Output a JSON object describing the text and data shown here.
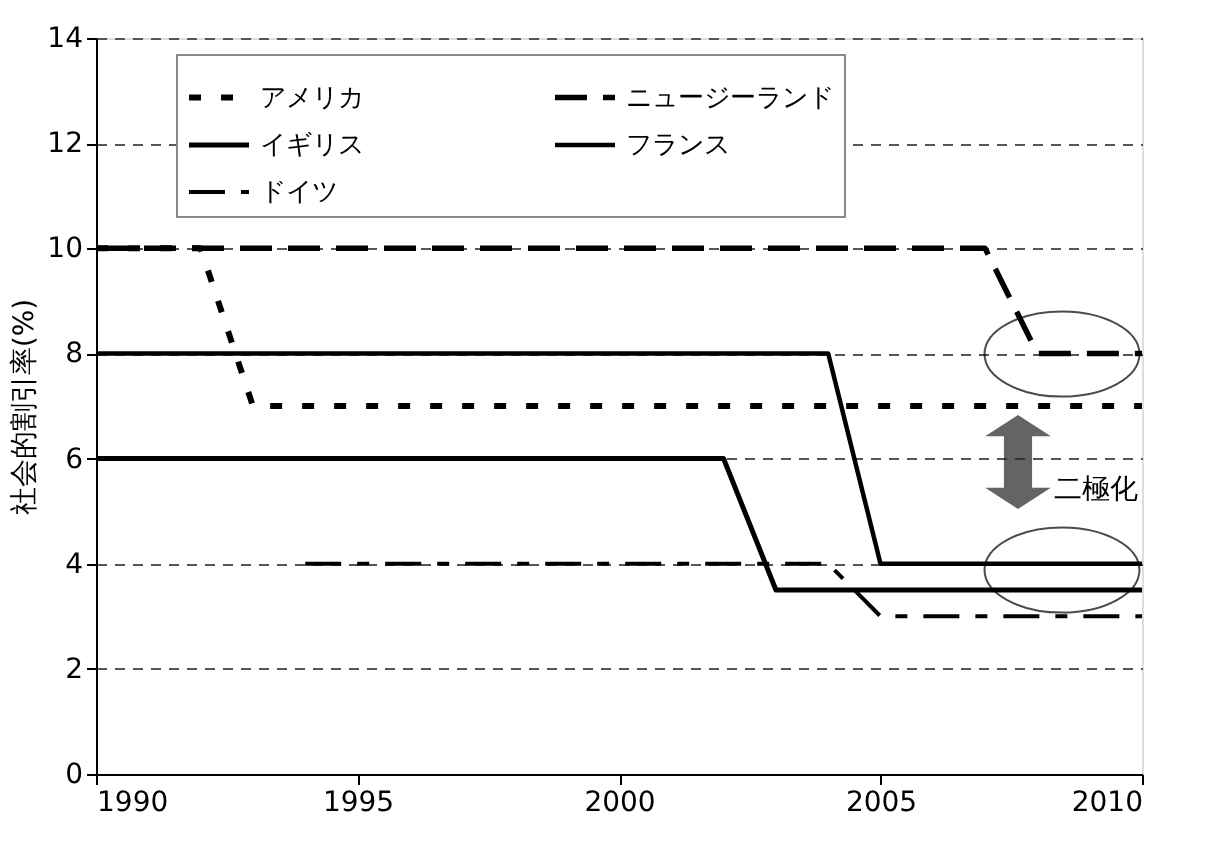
{
  "chart_data": {
    "type": "line",
    "ylabel": "社会的割引率(%)",
    "xlim": [
      1990,
      2010
    ],
    "xticks": [
      1990,
      1995,
      2000,
      2005,
      2010
    ],
    "ylim": [
      0,
      14
    ],
    "yticks": [
      0,
      2,
      4,
      6,
      8,
      10,
      12,
      14
    ],
    "grid": "y",
    "legend": "top",
    "marker": "none",
    "annotations": [
      "二極化"
    ],
    "series": [
      {
        "name": "アメリカ",
        "color": "#000000",
        "line_style": "dotted",
        "x": [
          1990,
          1992,
          1993,
          2010
        ],
        "values": [
          10,
          10,
          7,
          7
        ]
      },
      {
        "name": "ニュージーランド",
        "color": "#000000",
        "line_style": "dashed",
        "x": [
          1990,
          2007,
          2008,
          2010
        ],
        "values": [
          10,
          10,
          8,
          8
        ]
      },
      {
        "name": "イギリス",
        "color": "#000000",
        "line_style": "solid",
        "x": [
          1990,
          2002,
          2003,
          2010
        ],
        "values": [
          6,
          6,
          3.5,
          3.5
        ]
      },
      {
        "name": "フランス",
        "color": "#000000",
        "line_style": "solid",
        "x": [
          1990,
          2004,
          2005,
          2010
        ],
        "values": [
          8,
          8,
          4,
          4
        ]
      },
      {
        "name": "ドイツ",
        "color": "#000000",
        "line_style": "dashdot",
        "x": [
          1994,
          2004,
          2005,
          2010
        ],
        "values": [
          4,
          4,
          3,
          3
        ]
      }
    ]
  }
}
